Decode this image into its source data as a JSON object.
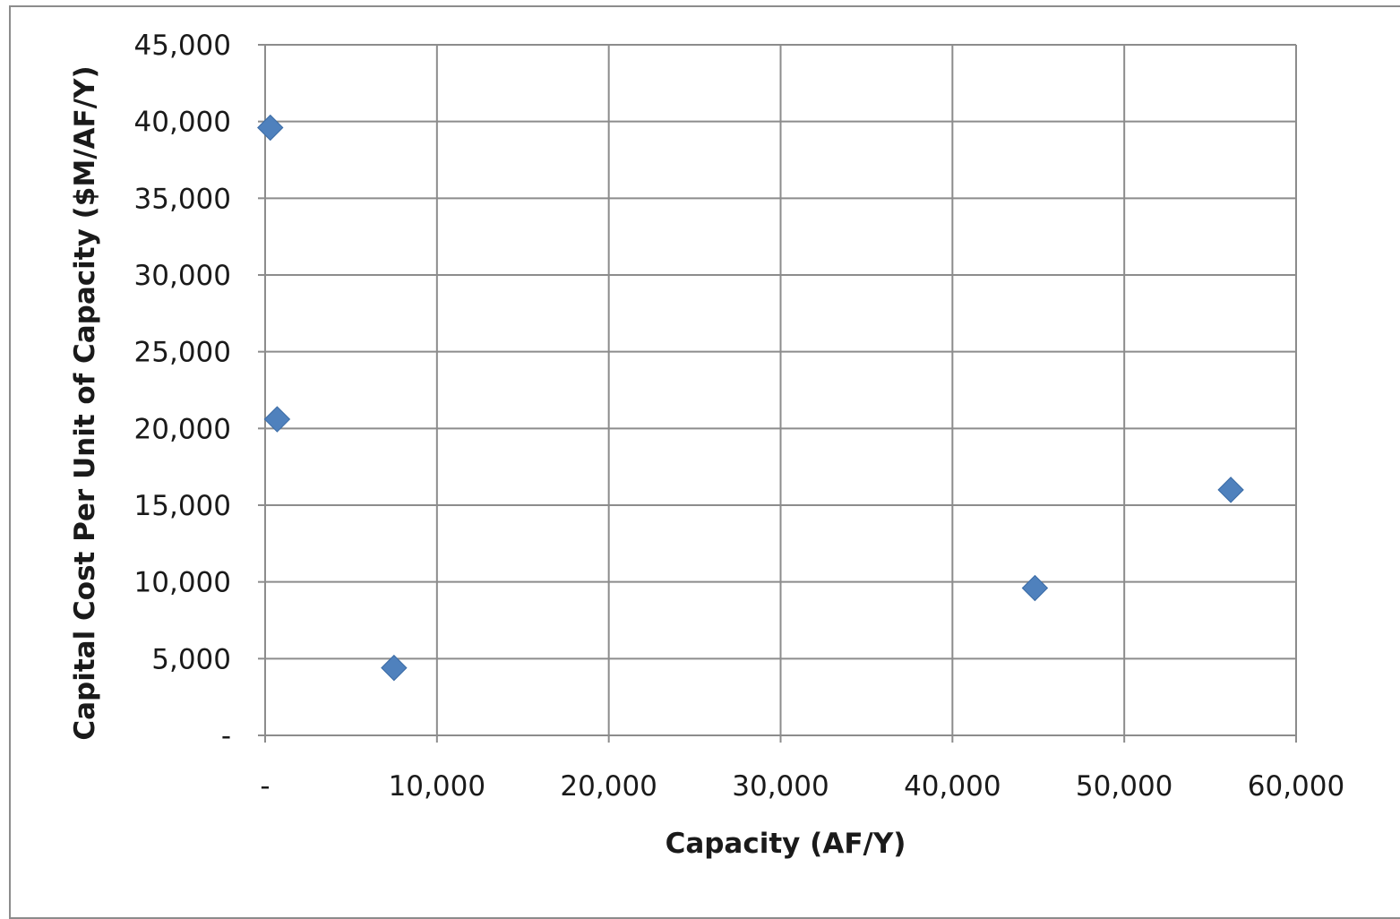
{
  "chart_data": {
    "type": "scatter",
    "title": "",
    "xlabel": "Capacity (AF/Y)",
    "ylabel": "Capital Cost Per Unit of Capacity  ($M/AF/Y)",
    "xlim": [
      0,
      60000
    ],
    "ylim": [
      0,
      45000
    ],
    "x_ticks": [
      0,
      10000,
      20000,
      30000,
      40000,
      50000,
      60000
    ],
    "x_tick_labels": [
      "-",
      "10,000",
      "20,000",
      "30,000",
      "40,000",
      "50,000",
      "60,000"
    ],
    "y_ticks": [
      0,
      5000,
      10000,
      15000,
      20000,
      25000,
      30000,
      35000,
      40000,
      45000
    ],
    "y_tick_labels": [
      "-",
      "5,000",
      "10,000",
      "15,000",
      "20,000",
      "25,000",
      "30,000",
      "35,000",
      "40,000",
      "45,000"
    ],
    "grid": true,
    "legend": "none",
    "marker": "diamond",
    "marker_color": "#4f81bd",
    "points": [
      {
        "x": 300,
        "y": 39600
      },
      {
        "x": 700,
        "y": 20600
      },
      {
        "x": 7500,
        "y": 4400
      },
      {
        "x": 44800,
        "y": 9600
      },
      {
        "x": 56200,
        "y": 16000
      }
    ]
  },
  "colors": {
    "grid": "#8c8c8c",
    "axis": "#8c8c8c",
    "frame": "#8c8c8c"
  }
}
